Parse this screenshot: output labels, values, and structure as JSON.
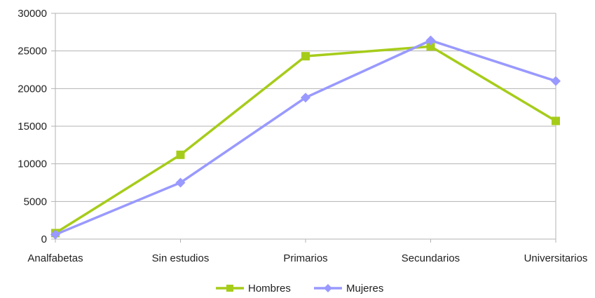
{
  "chart_data": {
    "type": "line",
    "categories": [
      "Analfabetas",
      "Sin estudios",
      "Primarios",
      "Secundarios",
      "Universitarios"
    ],
    "ylim": [
      0,
      30000
    ],
    "yticks": [
      0,
      5000,
      10000,
      15000,
      20000,
      25000,
      30000
    ],
    "grid": true,
    "legend_position": "bottom",
    "series": [
      {
        "name": "Hombres",
        "color": "#a6cc1a",
        "marker": "square",
        "values": [
          800,
          11200,
          24300,
          25600,
          15700
        ]
      },
      {
        "name": "Mujeres",
        "color": "#9999ff",
        "marker": "diamond",
        "values": [
          600,
          7500,
          18800,
          26400,
          21000
        ]
      }
    ]
  }
}
